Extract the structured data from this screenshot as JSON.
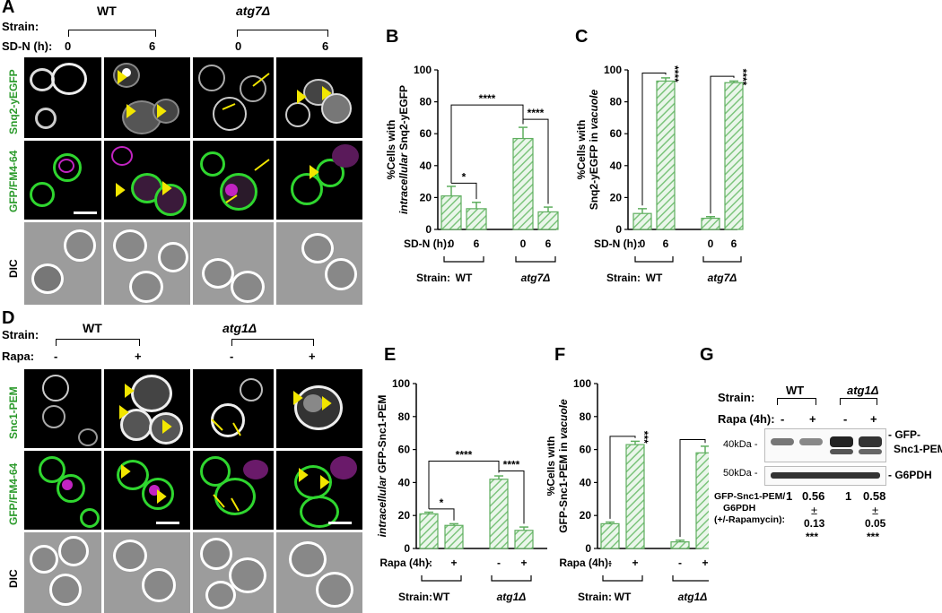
{
  "panel_letters": [
    "A",
    "B",
    "C",
    "D",
    "E",
    "F",
    "G"
  ],
  "panelA": {
    "strain_label": "Strain:",
    "sdn_label": "SD-N (h):",
    "strains": [
      "WT",
      "atg7Δ"
    ],
    "times": [
      "0",
      "6",
      "0",
      "6"
    ],
    "row_labels": [
      "Snq2-yEGFP",
      "GFP/FM4-64",
      "DIC"
    ]
  },
  "panelD": {
    "strain_label": "Strain:",
    "rapa_label": "Rapa:",
    "strains": [
      "WT",
      "atg1Δ"
    ],
    "rapa": [
      "-",
      "+",
      "-",
      "+"
    ],
    "row_labels": [
      "Snc1-PEM",
      "GFP/FM4-64",
      "DIC"
    ]
  },
  "colors": {
    "bar_hatch": "#7cc47c",
    "bar_fill": "#eaf6ea",
    "green": "#2fd62f",
    "magenta": "#c224c2",
    "arrow": "#f2e600"
  },
  "chart_data": [
    {
      "id": "B",
      "type": "bar",
      "ylabel_pre": "%Cells with",
      "ylabel_italic": "intracellular",
      "ylabel_post": "Snq2-yEGFP",
      "ylim": [
        0,
        100
      ],
      "yticks": [
        0,
        20,
        40,
        60,
        80,
        100
      ],
      "categories": [
        "0",
        "6",
        "0",
        "6"
      ],
      "values": [
        21,
        13,
        57,
        11
      ],
      "errors": [
        6,
        4,
        7,
        3
      ],
      "cond_label": "SD-N (h):",
      "strain_label": "Strain:",
      "groups": [
        "WT",
        "atg7Δ"
      ],
      "sig": [
        {
          "from": 0,
          "to": 1,
          "text": "*",
          "level": 29
        },
        {
          "from": 0,
          "to": 2,
          "text": "****",
          "level": 78
        },
        {
          "from": 2,
          "to": 3,
          "text": "****",
          "level": 69
        }
      ]
    },
    {
      "id": "C",
      "type": "bar",
      "ylabel_pre": "%Cells with",
      "ylabel_mid": "Snq2-yEGFP in",
      "ylabel_italic": "vacuole",
      "ylim": [
        0,
        100
      ],
      "yticks": [
        0,
        20,
        40,
        60,
        80,
        100
      ],
      "categories": [
        "0",
        "6",
        "0",
        "6"
      ],
      "values": [
        10,
        93,
        7,
        92
      ],
      "errors": [
        3,
        2,
        1,
        1
      ],
      "cond_label": "SD-N (h):",
      "strain_label": "Strain:",
      "groups": [
        "WT",
        "atg7Δ"
      ],
      "sig": [
        {
          "from": 0,
          "to": 1,
          "text": "****",
          "level": 98
        },
        {
          "from": 2,
          "to": 3,
          "text": "****",
          "level": 96
        }
      ]
    },
    {
      "id": "E",
      "type": "bar",
      "ylabel_pre": "%Cells with",
      "ylabel_italic": "intracellular",
      "ylabel_post": "GFP-Snc1-PEM",
      "ylim": [
        0,
        100
      ],
      "yticks": [
        0,
        20,
        40,
        60,
        80,
        100
      ],
      "categories": [
        "-",
        "+",
        "-",
        "+"
      ],
      "values": [
        21,
        14,
        42,
        11
      ],
      "errors": [
        1,
        1,
        2,
        2
      ],
      "cond_label": "Rapa (4h):",
      "strain_label": "Strain:",
      "groups": [
        "WT",
        "atg1Δ"
      ],
      "sig": [
        {
          "from": 0,
          "to": 1,
          "text": "*",
          "level": 24
        },
        {
          "from": 0,
          "to": 2,
          "text": "****",
          "level": 53
        },
        {
          "from": 2,
          "to": 3,
          "text": "****",
          "level": 47
        }
      ]
    },
    {
      "id": "F",
      "type": "bar",
      "ylabel_pre": "%Cells with",
      "ylabel_mid": "GFP-Snc1-PEM in",
      "ylabel_italic": "vacuole",
      "ylim": [
        0,
        100
      ],
      "yticks": [
        0,
        20,
        40,
        60,
        80,
        100
      ],
      "categories": [
        "-",
        "+",
        "-",
        "+"
      ],
      "values": [
        15,
        63,
        4,
        58
      ],
      "errors": [
        1,
        2,
        1,
        4
      ],
      "cond_label": "Rapa (4h):",
      "strain_label": "Strain:",
      "groups": [
        "WT",
        "atg1Δ"
      ],
      "sig": [
        {
          "from": 0,
          "to": 1,
          "text": "***",
          "level": 68
        },
        {
          "from": 2,
          "to": 3,
          "text": "***",
          "level": 66
        }
      ]
    }
  ],
  "panelG": {
    "strain_label": "Strain:",
    "strains": [
      "WT",
      "atg1Δ"
    ],
    "rapa_label": "Rapa (4h):",
    "rapa": [
      "-",
      "+",
      "-",
      "+"
    ],
    "mw1": "40kDa -",
    "mw2": "50kDa -",
    "band1_line1": "- GFP-",
    "band1_line2": "Snc1-PEM",
    "band2": "- G6PDH",
    "ratio_label1": "GFP-Snc1-PEM/",
    "ratio_label2": "G6PDH",
    "ratio_label3": "(+/-Rapamycin):",
    "ratios": [
      "1",
      "0.56",
      "1",
      "0.58"
    ],
    "pm": "±",
    "errs": [
      "0.13",
      "0.05"
    ],
    "stars": [
      "***",
      "***"
    ]
  }
}
